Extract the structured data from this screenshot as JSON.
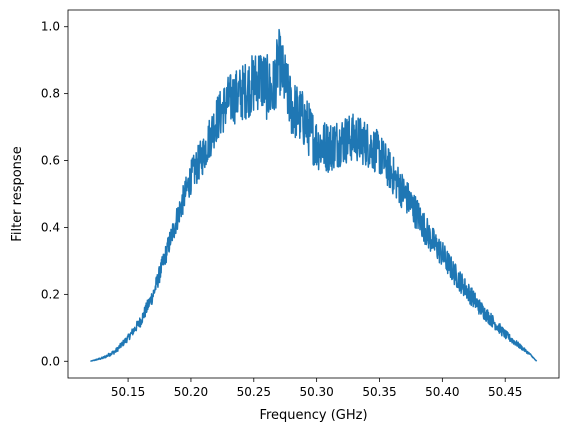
{
  "chart_data": {
    "type": "line",
    "xlabel": "Frequency (GHz)",
    "ylabel": "Filter response",
    "xlim": [
      50.1022,
      50.4928
    ],
    "ylim": [
      -0.05,
      1.05
    ],
    "x_ticks": [
      {
        "value": 50.15,
        "label": "50.15"
      },
      {
        "value": 50.2,
        "label": "50.20"
      },
      {
        "value": 50.25,
        "label": "50.25"
      },
      {
        "value": 50.3,
        "label": "50.30"
      },
      {
        "value": 50.35,
        "label": "50.35"
      },
      {
        "value": 50.4,
        "label": "50.40"
      },
      {
        "value": 50.45,
        "label": "50.45"
      }
    ],
    "y_ticks": [
      {
        "value": 0.0,
        "label": "0.0"
      },
      {
        "value": 0.2,
        "label": "0.2"
      },
      {
        "value": 0.4,
        "label": "0.4"
      },
      {
        "value": 0.6,
        "label": "0.6"
      },
      {
        "value": 0.8,
        "label": "0.8"
      },
      {
        "value": 1.0,
        "label": "1.0"
      }
    ],
    "grid": false,
    "legend": "none",
    "series": [
      {
        "color": "#1f77b4",
        "noise_amplitude": [
          [
            50.12,
            0.0
          ],
          [
            50.15,
            0.01
          ],
          [
            50.18,
            0.03
          ],
          [
            50.22,
            0.07
          ],
          [
            50.26,
            0.1
          ],
          [
            50.3,
            0.08
          ],
          [
            50.34,
            0.07
          ],
          [
            50.38,
            0.05
          ],
          [
            50.42,
            0.03
          ],
          [
            50.475,
            0.0
          ]
        ],
        "x": [
          50.12,
          50.13,
          50.14,
          50.15,
          50.16,
          50.17,
          50.18,
          50.19,
          50.2,
          50.21,
          50.22,
          50.225,
          50.23,
          50.24,
          50.25,
          50.255,
          50.26,
          50.265,
          50.27,
          50.275,
          50.28,
          50.285,
          50.29,
          50.3,
          50.31,
          50.32,
          50.33,
          50.34,
          50.35,
          50.36,
          50.37,
          50.38,
          50.39,
          50.4,
          50.41,
          50.42,
          50.43,
          50.44,
          50.45,
          50.46,
          50.47,
          50.475
        ],
        "y": [
          0.0,
          0.01,
          0.03,
          0.07,
          0.12,
          0.2,
          0.32,
          0.44,
          0.55,
          0.62,
          0.72,
          0.75,
          0.78,
          0.8,
          0.83,
          0.85,
          0.82,
          0.8,
          0.9,
          0.83,
          0.76,
          0.74,
          0.72,
          0.65,
          0.64,
          0.66,
          0.67,
          0.65,
          0.62,
          0.56,
          0.5,
          0.44,
          0.37,
          0.32,
          0.26,
          0.21,
          0.16,
          0.12,
          0.08,
          0.05,
          0.02,
          0.0
        ]
      }
    ]
  }
}
